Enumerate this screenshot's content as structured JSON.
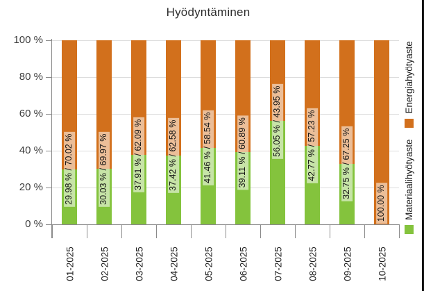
{
  "page": {
    "title": "Hyödyntäminen"
  },
  "chart_data": {
    "type": "bar",
    "stacked": true,
    "title": "Hyödyntäminen",
    "xlabel": "",
    "ylabel": "",
    "categories": [
      "01-2025",
      "02-2025",
      "03-2025",
      "04-2025",
      "05-2025",
      "06-2025",
      "07-2025",
      "08-2025",
      "09-2025",
      "10-2025"
    ],
    "series": [
      {
        "name": "Materiaalihyötyaste",
        "color": "#84C33D",
        "values": [
          29.98,
          30.03,
          37.91,
          37.42,
          41.46,
          39.11,
          56.05,
          42.77,
          32.75,
          0
        ]
      },
      {
        "name": "Energiahyötyaste",
        "color": "#D2701C",
        "values": [
          70.02,
          69.97,
          62.09,
          62.58,
          58.54,
          60.89,
          43.95,
          57.23,
          67.25,
          100.0
        ]
      }
    ],
    "bar_labels": [
      "29.98 % / 70.02 %",
      "30.03 % / 69.97 %",
      "37.91 % / 62.09 %",
      "37.42 % / 62.58 %",
      "41.46 % / 58.54 %",
      "39.11 % / 60.89 %",
      "56.05 % / 43.95 %",
      "42.77 % / 57.23 %",
      "32.75 % / 67.25 %",
      "100.00 %"
    ],
    "y_ticks": [
      "0 %",
      "20 %",
      "40 %",
      "60 %",
      "80 %",
      "100 %"
    ],
    "ylim": [
      0,
      100
    ],
    "grid": true,
    "legend_position": "right, rotated 90° (reads bottom to top)",
    "colors": {
      "grid": "#DCDCDC",
      "axis": "#8A8A8A",
      "bar_label_background": "rgba(255,255,255,0.55)",
      "text": "#3D3D3D"
    }
  }
}
